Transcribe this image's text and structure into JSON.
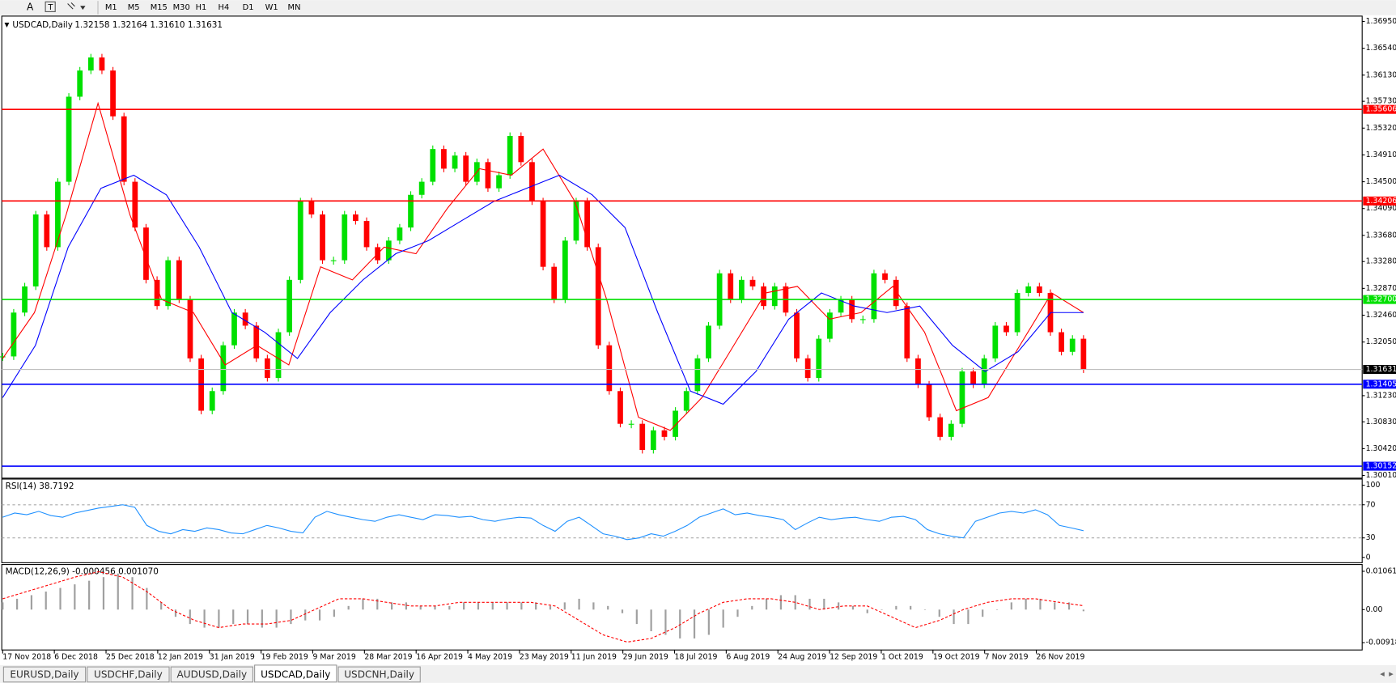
{
  "toolbar": {
    "timeframes": [
      "M1",
      "M5",
      "M15",
      "M30",
      "H1",
      "H4",
      "D1",
      "W1",
      "MN"
    ]
  },
  "chart_data": [
    {
      "type": "candlestick",
      "title": "USDCAD,Daily",
      "quote": "1.32158 1.32164 1.31610 1.31631",
      "date_labels": [
        "17 Nov 2018",
        "6 Dec 2018",
        "25 Dec 2018",
        "12 Jan 2019",
        "31 Jan 2019",
        "19 Feb 2019",
        "9 Mar 2019",
        "28 Mar 2019",
        "16 Apr 2019",
        "4 May 2019",
        "23 May 2019",
        "11 Jun 2019",
        "29 Jun 2019",
        "18 Jul 2019",
        "6 Aug 2019",
        "24 Aug 2019",
        "12 Sep 2019",
        "1 Oct 2019",
        "19 Oct 2019",
        "7 Nov 2019",
        "26 Nov 2019"
      ],
      "values": [
        1.3183,
        1.325,
        1.329,
        1.34,
        1.335,
        1.345,
        1.358,
        1.362,
        1.364,
        1.362,
        1.355,
        1.345,
        1.338,
        1.33,
        1.326,
        1.333,
        1.327,
        1.318,
        1.31,
        1.313,
        1.32,
        1.325,
        1.323,
        1.318,
        1.315,
        1.322,
        1.33,
        1.342,
        1.34,
        1.333,
        1.333,
        1.34,
        1.339,
        1.335,
        1.333,
        1.336,
        1.338,
        1.343,
        1.345,
        1.35,
        1.347,
        1.349,
        1.345,
        1.348,
        1.344,
        1.346,
        1.352,
        1.348,
        1.342,
        1.332,
        1.327,
        1.336,
        1.342,
        1.335,
        1.32,
        1.313,
        1.308,
        1.308,
        1.304,
        1.307,
        1.306,
        1.31,
        1.313,
        1.318,
        1.323,
        1.331,
        1.327,
        1.33,
        1.329,
        1.326,
        1.329,
        1.325,
        1.318,
        1.315,
        1.321,
        1.325,
        1.327,
        1.324,
        1.324,
        1.331,
        1.33,
        1.326,
        1.318,
        1.314,
        1.309,
        1.306,
        1.308,
        1.316,
        1.314,
        1.318,
        1.323,
        1.322,
        1.328,
        1.329,
        1.328,
        1.322,
        1.319,
        1.321,
        1.31631
      ],
      "up_color": "#00e000",
      "down_color": "#ff0000",
      "series": [
        {
          "color": "#ff0000",
          "values": [
            1.318,
            1.325,
            1.34,
            1.357,
            1.34,
            1.327,
            1.325,
            1.317,
            1.32,
            1.317,
            1.332,
            1.33,
            1.335,
            1.334,
            1.341,
            1.347,
            1.346,
            1.35,
            1.342,
            1.327,
            1.309,
            1.307,
            1.312,
            1.32,
            1.328,
            1.329,
            1.324,
            1.325,
            1.329,
            1.322,
            1.31,
            1.312,
            1.32,
            1.328,
            1.325
          ]
        },
        {
          "color": "#0000ff",
          "values": [
            1.312,
            1.32,
            1.335,
            1.344,
            1.346,
            1.343,
            1.335,
            1.325,
            1.322,
            1.318,
            1.325,
            1.33,
            1.334,
            1.336,
            1.339,
            1.342,
            1.344,
            1.346,
            1.343,
            1.338,
            1.325,
            1.313,
            1.311,
            1.316,
            1.324,
            1.328,
            1.326,
            1.325,
            1.326,
            1.32,
            1.316,
            1.319,
            1.325,
            1.325
          ]
        }
      ],
      "levels": [
        {
          "value": 1.35606,
          "label": "1.35606",
          "color": "#ff0000"
        },
        {
          "value": 1.34206,
          "label": "1.34206",
          "color": "#ff0000"
        },
        {
          "value": 1.327,
          "label": "1.32700",
          "color": "#00e000"
        },
        {
          "value": 1.31405,
          "label": "1.31405",
          "color": "#0000ff"
        },
        {
          "value": 1.30152,
          "label": "1.30152",
          "color": "#0000ff"
        },
        {
          "value": 1.31631,
          "label": "1.31631",
          "color": "#c0c0c0"
        }
      ],
      "ylim": [
        1.29969,
        1.37032
      ],
      "yticks": [
        {
          "value": 1.3695,
          "label": "1.36950"
        },
        {
          "value": 1.3654,
          "label": "1.36540"
        },
        {
          "value": 1.3613,
          "label": "1.36130"
        },
        {
          "value": 1.3573,
          "label": "1.35730"
        },
        {
          "value": 1.3532,
          "label": "1.35320"
        },
        {
          "value": 1.3491,
          "label": "1.34910"
        },
        {
          "value": 1.345,
          "label": "1.34500"
        },
        {
          "value": 1.3409,
          "label": "1.34090"
        },
        {
          "value": 1.3368,
          "label": "1.33680"
        },
        {
          "value": 1.3328,
          "label": "1.33280"
        },
        {
          "value": 1.3287,
          "label": "1.32870"
        },
        {
          "value": 1.3246,
          "label": "1.32460"
        },
        {
          "value": 1.3205,
          "label": "1.32050"
        },
        {
          "value": 1.3123,
          "label": "1.31230"
        },
        {
          "value": 1.3083,
          "label": "1.30830"
        },
        {
          "value": 1.3042,
          "label": "1.30420"
        },
        {
          "value": 1.3001,
          "label": "1.30010"
        }
      ]
    },
    {
      "type": "line",
      "title": "RSI(14) 38.7192",
      "color": "#1e90ff",
      "values": [
        55,
        60,
        58,
        62,
        57,
        55,
        60,
        63,
        66,
        68,
        70,
        67,
        45,
        38,
        35,
        40,
        38,
        42,
        40,
        36,
        35,
        40,
        45,
        42,
        38,
        36,
        55,
        62,
        58,
        55,
        52,
        50,
        55,
        58,
        55,
        52,
        58,
        57,
        55,
        56,
        52,
        50,
        53,
        55,
        54,
        45,
        38,
        50,
        55,
        45,
        35,
        32,
        28,
        30,
        35,
        32,
        38,
        45,
        55,
        60,
        65,
        58,
        60,
        57,
        55,
        52,
        40,
        48,
        55,
        52,
        54,
        55,
        52,
        50,
        55,
        56,
        52,
        40,
        35,
        32,
        30,
        50,
        55,
        60,
        62,
        60,
        64,
        58,
        45,
        42,
        38.7192
      ],
      "ylim": [
        0,
        100
      ],
      "yticks": [
        100,
        70,
        30,
        0
      ],
      "levels": [
        70,
        30
      ]
    },
    {
      "type": "macd",
      "title": "MACD(12,26,9) -0.000456 0.001070",
      "color": "#a0a0a0",
      "signal_color": "#ff0000",
      "values": [
        0.002,
        0.003,
        0.004,
        0.005,
        0.006,
        0.007,
        0.008,
        0.009,
        0.01,
        0.009,
        0.006,
        0.002,
        -0.002,
        -0.004,
        -0.005,
        -0.005,
        -0.004,
        -0.004,
        -0.005,
        -0.005,
        -0.004,
        -0.003,
        -0.003,
        -0.002,
        0.001,
        0.003,
        0.003,
        0.002,
        0.002,
        0.001,
        0.001,
        0.001,
        0.002,
        0.002,
        0.002,
        0.002,
        0.002,
        0.002,
        0.001,
        0.002,
        0.003,
        0.002,
        0.001,
        -0.001,
        -0.004,
        -0.006,
        -0.007,
        -0.008,
        -0.008,
        -0.007,
        -0.005,
        -0.002,
        0.001,
        0.003,
        0.004,
        0.004,
        0.003,
        0.003,
        0.002,
        0.001,
        -0.001,
        0,
        0.001,
        0.001,
        0,
        -0.002,
        -0.004,
        -0.004,
        -0.002,
        0,
        0.002,
        0.003,
        0.003,
        0.002,
        0.002,
        -0.000456
      ],
      "signal": [
        0.003,
        0.005,
        0.007,
        0.009,
        0.0105,
        0.009,
        0.005,
        0,
        -0.003,
        -0.005,
        -0.004,
        -0.004,
        -0.003,
        0,
        0.003,
        0.003,
        0.002,
        0.001,
        0.001,
        0.002,
        0.002,
        0.002,
        0.002,
        0.001,
        -0.003,
        -0.007,
        -0.009,
        -0.008,
        -0.005,
        -0.001,
        0.002,
        0.003,
        0.003,
        0.002,
        0,
        0.001,
        0.001,
        -0.002,
        -0.005,
        -0.003,
        0,
        0.002,
        0.003,
        0.003,
        0.002,
        0.00107
      ],
      "ylim": [
        -0.0112,
        0.0125
      ],
      "yticks": [
        0.010615,
        {
          "value": 0,
          "label": "0.00"
        },
        -0.009181
      ]
    }
  ],
  "tabs": [
    "EURUSD,Daily",
    "USDCHF,Daily",
    "AUDUSD,Daily",
    "USDCAD,Daily",
    "USDCNH,Daily"
  ],
  "active_tab": 3
}
